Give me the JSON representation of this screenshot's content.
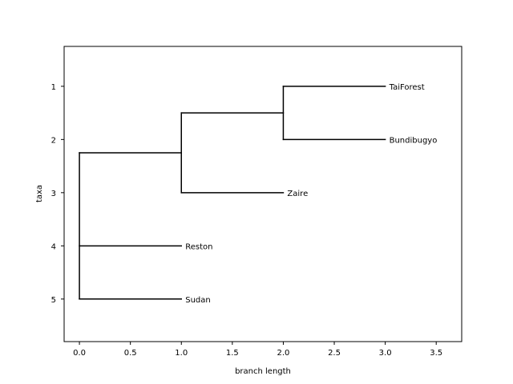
{
  "chart_data": {
    "type": "dendrogram",
    "xlabel": "branch length",
    "ylabel": "taxa",
    "xlim": [
      -0.15,
      3.75
    ],
    "ylim": [
      5.8,
      0.25
    ],
    "xticks": [
      0.0,
      0.5,
      1.0,
      1.5,
      2.0,
      2.5,
      3.0,
      3.5
    ],
    "xtick_labels": [
      "0.0",
      "0.5",
      "1.0",
      "1.5",
      "2.0",
      "2.5",
      "3.0",
      "3.5"
    ],
    "yticks": [
      1,
      2,
      3,
      4,
      5
    ],
    "ytick_labels": [
      "1",
      "2",
      "3",
      "4",
      "5"
    ],
    "leaves": [
      {
        "label": "TaiForest",
        "x": 3.0,
        "y": 1
      },
      {
        "label": "Bundibugyo",
        "x": 3.0,
        "y": 2
      },
      {
        "label": "Zaire",
        "x": 2.0,
        "y": 3
      },
      {
        "label": "Reston",
        "x": 1.0,
        "y": 4
      },
      {
        "label": "Sudan",
        "x": 1.0,
        "y": 5
      }
    ],
    "branches": [
      {
        "x1": 0.0,
        "y1": 2.25,
        "x2": 1.0,
        "y2": 2.25
      },
      {
        "x1": 0.0,
        "y1": 4,
        "x2": 1.0,
        "y2": 4
      },
      {
        "x1": 0.0,
        "y1": 5,
        "x2": 1.0,
        "y2": 5
      },
      {
        "x1": 0.0,
        "y1": 2.25,
        "x2": 0.0,
        "y2": 5
      },
      {
        "x1": 1.0,
        "y1": 1.5,
        "x2": 2.0,
        "y2": 1.5
      },
      {
        "x1": 1.0,
        "y1": 3,
        "x2": 2.0,
        "y2": 3
      },
      {
        "x1": 1.0,
        "y1": 1.5,
        "x2": 1.0,
        "y2": 3
      },
      {
        "x1": 2.0,
        "y1": 1,
        "x2": 3.0,
        "y2": 1
      },
      {
        "x1": 2.0,
        "y1": 2,
        "x2": 3.0,
        "y2": 2
      },
      {
        "x1": 2.0,
        "y1": 1,
        "x2": 2.0,
        "y2": 2
      }
    ]
  }
}
